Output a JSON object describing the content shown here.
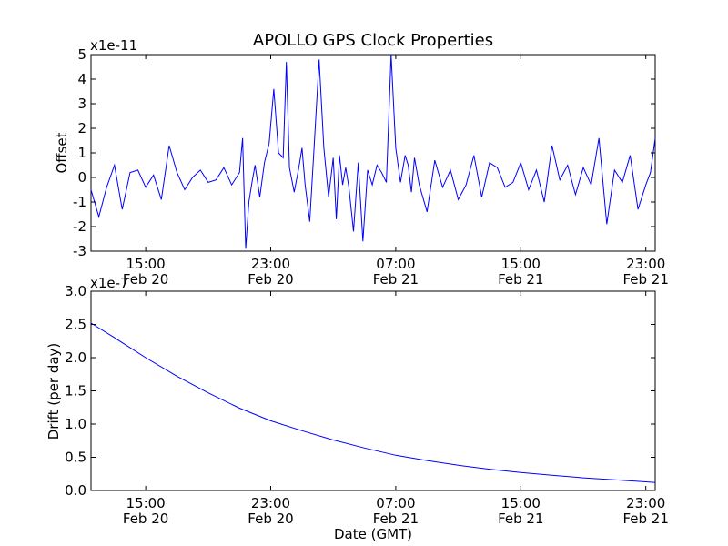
{
  "figure": {
    "title": "APOLLO GPS Clock Properties"
  },
  "colors": {
    "line": "#0000ff",
    "axes": "#000000",
    "background": "#ffffff"
  },
  "x_ticks": [
    {
      "hours": 15,
      "label": "15:00",
      "date": "Feb 20"
    },
    {
      "hours": 23,
      "label": "23:00",
      "date": "Feb 20"
    },
    {
      "hours": 31,
      "label": "07:00",
      "date": "Feb 21"
    },
    {
      "hours": 39,
      "label": "15:00",
      "date": "Feb 21"
    },
    {
      "hours": 47,
      "label": "23:00",
      "date": "Feb 21"
    }
  ],
  "chart_data": [
    {
      "type": "line",
      "name": "offset-panel",
      "ylabel": "Offset",
      "xlabel": "",
      "y_multiplier": "x1e-11",
      "xlim_hours": [
        11.5,
        47.6
      ],
      "ylim": [
        -3,
        5
      ],
      "yticks": [
        -3,
        -2,
        -1,
        0,
        1,
        2,
        3,
        4,
        5
      ],
      "ytick_labels": [
        "-3",
        "-2",
        "-1",
        "0",
        "1",
        "2",
        "3",
        "4",
        "5"
      ],
      "series": [
        {
          "name": "offset",
          "x_hours": [
            11.5,
            12.0,
            12.5,
            13.0,
            13.5,
            14.0,
            14.5,
            15.0,
            15.5,
            16.0,
            16.5,
            17.0,
            17.5,
            18.0,
            18.5,
            19.0,
            19.5,
            20.0,
            20.5,
            21.0,
            21.2,
            21.4,
            21.6,
            21.8,
            22.0,
            22.3,
            22.6,
            22.9,
            23.2,
            23.5,
            23.8,
            24.0,
            24.2,
            24.5,
            24.8,
            25.0,
            25.2,
            25.5,
            25.8,
            26.1,
            26.4,
            26.7,
            27.0,
            27.2,
            27.4,
            27.6,
            27.8,
            28.0,
            28.3,
            28.6,
            28.9,
            29.2,
            29.5,
            29.8,
            30.1,
            30.4,
            30.7,
            31.0,
            31.3,
            31.6,
            31.8,
            32.0,
            32.2,
            32.5,
            33.0,
            33.5,
            34.0,
            34.5,
            35.0,
            35.5,
            36.0,
            36.5,
            37.0,
            37.5,
            38.0,
            38.5,
            39.0,
            39.5,
            40.0,
            40.5,
            41.0,
            41.5,
            42.0,
            42.5,
            43.0,
            43.5,
            44.0,
            44.5,
            45.0,
            45.5,
            46.0,
            46.5,
            47.0,
            47.3,
            47.6
          ],
          "values": [
            -0.5,
            -1.6,
            -0.4,
            0.5,
            -1.3,
            0.2,
            0.3,
            -0.4,
            0.1,
            -0.9,
            1.3,
            0.2,
            -0.5,
            0.0,
            0.3,
            -0.2,
            -0.1,
            0.4,
            -0.3,
            0.2,
            1.6,
            -2.9,
            -1.0,
            -0.2,
            0.5,
            -0.8,
            0.6,
            1.4,
            3.6,
            1.0,
            0.8,
            4.7,
            0.4,
            -0.6,
            0.4,
            1.2,
            -0.3,
            -1.8,
            1.5,
            4.8,
            1.2,
            -0.8,
            0.8,
            -1.7,
            0.9,
            -0.3,
            0.4,
            -0.4,
            -2.2,
            0.6,
            -2.6,
            0.3,
            -0.3,
            0.5,
            0.2,
            -0.2,
            5.0,
            1.2,
            -0.2,
            0.9,
            0.5,
            -0.6,
            0.8,
            -0.3,
            -1.4,
            0.7,
            -0.4,
            0.3,
            -0.9,
            -0.3,
            0.9,
            -0.8,
            0.6,
            0.4,
            -0.4,
            -0.2,
            0.6,
            -0.5,
            0.3,
            -1.0,
            1.3,
            -0.1,
            0.5,
            -0.7,
            0.4,
            -0.3,
            1.6,
            -1.9,
            0.3,
            -0.2,
            0.9,
            -1.3,
            -0.3,
            0.2,
            1.6
          ]
        }
      ]
    },
    {
      "type": "line",
      "name": "drift-panel",
      "ylabel": "Drift (per day)",
      "xlabel": "Date (GMT)",
      "y_multiplier": "x1e-7",
      "xlim_hours": [
        11.5,
        47.6
      ],
      "ylim": [
        0.0,
        3.0
      ],
      "yticks": [
        0.0,
        0.5,
        1.0,
        1.5,
        2.0,
        2.5,
        3.0
      ],
      "ytick_labels": [
        "0.0",
        "0.5",
        "1.0",
        "1.5",
        "2.0",
        "2.5",
        "3.0"
      ],
      "series": [
        {
          "name": "drift",
          "x_hours": [
            11.5,
            13.0,
            15.0,
            17.0,
            19.0,
            21.0,
            23.0,
            25.0,
            27.0,
            29.0,
            31.0,
            33.0,
            35.0,
            37.0,
            39.0,
            41.0,
            43.0,
            45.0,
            47.0,
            47.6
          ],
          "values": [
            2.52,
            2.3,
            2.0,
            1.72,
            1.47,
            1.24,
            1.05,
            0.9,
            0.76,
            0.64,
            0.53,
            0.45,
            0.38,
            0.32,
            0.27,
            0.23,
            0.19,
            0.16,
            0.13,
            0.12
          ]
        }
      ]
    }
  ]
}
